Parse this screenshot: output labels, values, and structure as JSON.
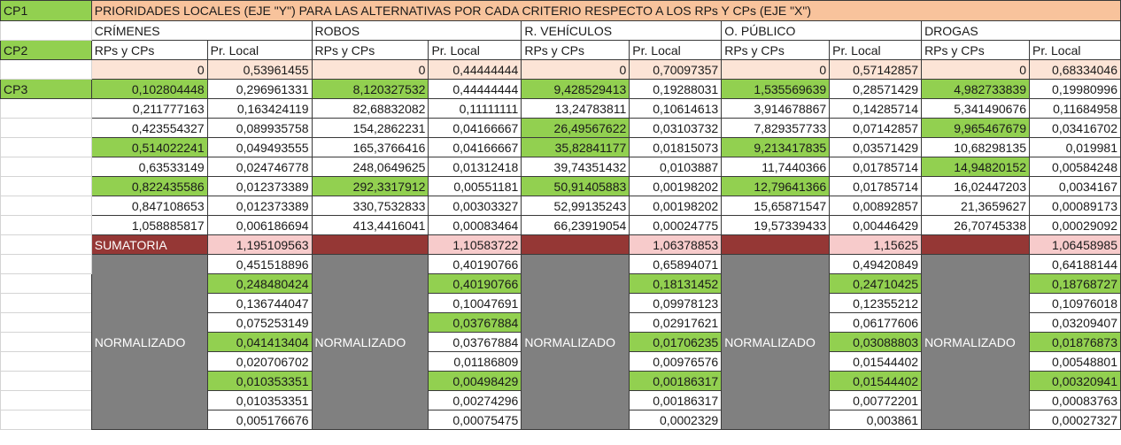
{
  "labels": {
    "cp1": "CP1",
    "cp2": "CP2",
    "cp3": "CP3"
  },
  "title": "PRIORIDADES LOCALES (EJE \"Y\") PARA LAS ALTERNATIVAS POR CADA CRITERIO RESPECTO A LOS RPs Y CPs (EJE \"X\")",
  "groups": [
    "CRÍMENES",
    "ROBOS",
    "R. VEHÍCULOS",
    "O. PÚBLICO",
    "DROGAS"
  ],
  "subheaders": {
    "rps": "RPs y CPs",
    "pr": "Pr. Local"
  },
  "data_rows": [
    {
      "cells": [
        "0",
        "0,53961455",
        "0",
        "0,44444444",
        "0",
        "0,70097357",
        "0",
        "0,57142857",
        "0",
        "0,68334046"
      ],
      "green": []
    },
    {
      "cells": [
        "0,102804448",
        "0,296961331",
        "8,120327532",
        "0,44444444",
        "9,428529413",
        "0,19288031",
        "1,535569639",
        "0,28571429",
        "4,982733839",
        "0,19980996"
      ],
      "green": [
        0,
        2,
        4,
        6,
        8
      ]
    },
    {
      "cells": [
        "0,211777163",
        "0,163424119",
        "82,68832082",
        "0,11111111",
        "13,24783811",
        "0,10614613",
        "3,914678867",
        "0,14285714",
        "5,341490676",
        "0,11684958"
      ],
      "green": []
    },
    {
      "cells": [
        "0,423554327",
        "0,089935758",
        "154,2862231",
        "0,04166667",
        "26,49567622",
        "0,03103732",
        "7,829357733",
        "0,07142857",
        "9,965467679",
        "0,03416702"
      ],
      "green": [
        4,
        8
      ]
    },
    {
      "cells": [
        "0,514022241",
        "0,049493555",
        "165,3766416",
        "0,04166667",
        "35,82841177",
        "0,01815073",
        "9,213417835",
        "0,03571429",
        "10,68298135",
        "0,019981"
      ],
      "green": [
        0,
        4,
        6
      ]
    },
    {
      "cells": [
        "0,63533149",
        "0,024746778",
        "248,0649625",
        "0,01312418",
        "39,74351432",
        "0,0103887",
        "11,7440366",
        "0,01785714",
        "14,94820152",
        "0,00584248"
      ],
      "green": [
        8
      ]
    },
    {
      "cells": [
        "0,822435586",
        "0,012373389",
        "292,3317912",
        "0,00551181",
        "50,91405883",
        "0,00198202",
        "12,79641366",
        "0,01785714",
        "16,02447203",
        "0,0034167"
      ],
      "green": [
        0,
        2,
        4,
        6
      ]
    },
    {
      "cells": [
        "0,847108653",
        "0,012373389",
        "330,7532833",
        "0,00303327",
        "52,99135243",
        "0,00198202",
        "15,65871547",
        "0,00892857",
        "21,3659627",
        "0,00089173"
      ],
      "green": []
    },
    {
      "cells": [
        "1,058885817",
        "0,006186694",
        "413,4416041",
        "0,00083464",
        "66,23919054",
        "0,00024775",
        "19,57339433",
        "0,00446429",
        "26,70745338",
        "0,00029092"
      ],
      "green": []
    }
  ],
  "sumatoria": {
    "label": "SUMATORIA",
    "values": [
      "1,195109563",
      "1,10583722",
      "1,06378853",
      "1,15625",
      "1,06458985"
    ]
  },
  "normalizado_label": "NORMALIZADO",
  "normalized_rows": [
    {
      "values": [
        "0,451518896",
        "0,40190766",
        "0,65894071",
        "0,49420849",
        "0,64188144"
      ],
      "green": []
    },
    {
      "values": [
        "0,248480424",
        "0,40190766",
        "0,18131452",
        "0,24710425",
        "0,18768727"
      ],
      "green": [
        0,
        1,
        2,
        3,
        4
      ]
    },
    {
      "values": [
        "0,136744047",
        "0,10047691",
        "0,09978123",
        "0,12355212",
        "0,10976018"
      ],
      "green": []
    },
    {
      "values": [
        "0,075253149",
        "0,03767884",
        "0,02917621",
        "0,06177606",
        "0,03209407"
      ],
      "green": [
        1
      ]
    },
    {
      "values": [
        "0,041413404",
        "0,03767884",
        "0,01706235",
        "0,03088803",
        "0,01876873"
      ],
      "green": [
        0,
        2,
        3,
        4
      ]
    },
    {
      "values": [
        "0,020706702",
        "0,01186809",
        "0,00976576",
        "0,01544402",
        "0,00548801"
      ],
      "green": []
    },
    {
      "values": [
        "0,010353351",
        "0,00498429",
        "0,00186317",
        "0,01544402",
        "0,00320941"
      ],
      "green": [
        0,
        1,
        2,
        3,
        4
      ]
    },
    {
      "values": [
        "0,010353351",
        "0,00274296",
        "0,00186317",
        "0,00772201",
        "0,00083763"
      ],
      "green": []
    },
    {
      "values": [
        "0,005176676",
        "0,00075475",
        "0,0002329",
        "0,003861",
        "0,00027327"
      ],
      "green": []
    }
  ],
  "colors": {
    "green": "#92d050",
    "title_bg": "#f8c39c",
    "pink": "#f7cbcb",
    "dark_red": "#953735",
    "gray": "#808080",
    "peach": "#fce4d6"
  }
}
